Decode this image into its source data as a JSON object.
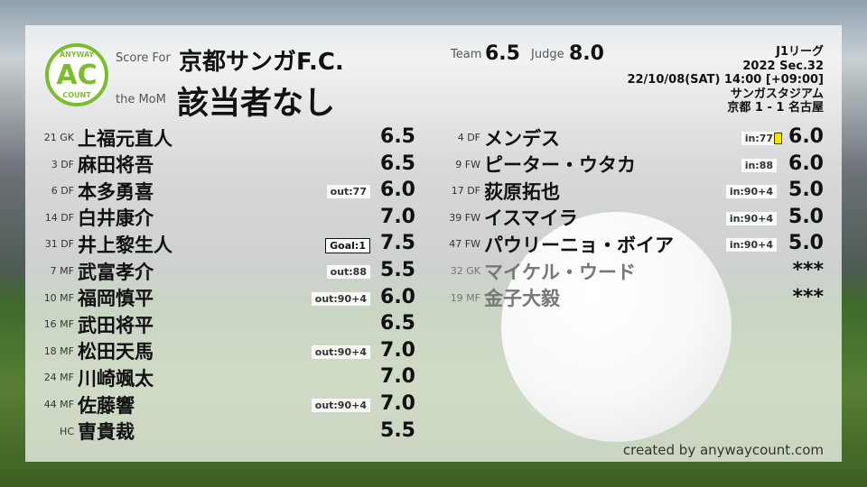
{
  "header": {
    "score_for_label": "Score For",
    "team_name": "京都サンガF.C.",
    "mom_label": "the MoM",
    "mom_value": "該当者なし",
    "team_label": "Team",
    "team_score": "6.5",
    "judge_label": "Judge",
    "judge_score": "8.0"
  },
  "logo": {
    "top": "ANYWAY",
    "mid": "AC",
    "bottom": "COUNT"
  },
  "match": {
    "league": "J1リーグ",
    "section": "2022 Sec.32",
    "datetime": "22/10/08(SAT) 14:00 [+09:00]",
    "stadium": "サンガスタジアム",
    "result": "京都 1 - 1 名古屋"
  },
  "starters": [
    {
      "num": "21 GK",
      "name": "上福元直人",
      "tag": "",
      "score": "6.5"
    },
    {
      "num": "3 DF",
      "name": "麻田将吾",
      "tag": "",
      "score": "6.5"
    },
    {
      "num": "6 DF",
      "name": "本多勇喜",
      "tag": "out:77",
      "score": "6.0"
    },
    {
      "num": "14 DF",
      "name": "白井康介",
      "tag": "",
      "score": "7.0"
    },
    {
      "num": "31 DF",
      "name": "井上黎生人",
      "tag": "Goal:1",
      "score": "7.5"
    },
    {
      "num": "7 MF",
      "name": "武富孝介",
      "tag": "out:88",
      "score": "5.5"
    },
    {
      "num": "10 MF",
      "name": "福岡慎平",
      "tag": "out:90+4",
      "score": "6.0"
    },
    {
      "num": "16 MF",
      "name": "武田将平",
      "tag": "",
      "score": "6.5"
    },
    {
      "num": "18 MF",
      "name": "松田天馬",
      "tag": "out:90+4",
      "score": "7.0"
    },
    {
      "num": "24 MF",
      "name": "川崎颯太",
      "tag": "",
      "score": "7.0"
    },
    {
      "num": "44 MF",
      "name": "佐藤響",
      "tag": "out:90+4",
      "score": "7.0"
    },
    {
      "num": "HC",
      "name": "曺貴裁",
      "tag": "",
      "score": "5.5"
    }
  ],
  "subs": [
    {
      "num": "4 DF",
      "name": "メンデス",
      "tag": "in:77",
      "score": "6.0",
      "yellow": true
    },
    {
      "num": "9 FW",
      "name": "ピーター・ウタカ",
      "tag": "in:88",
      "score": "6.0"
    },
    {
      "num": "17 DF",
      "name": "荻原拓也",
      "tag": "in:90+4",
      "score": "5.0"
    },
    {
      "num": "39 FW",
      "name": "イスマイラ",
      "tag": "in:90+4",
      "score": "5.0"
    },
    {
      "num": "47 FW",
      "name": "パウリーニョ・ボイア",
      "tag": "in:90+4",
      "score": "5.0"
    },
    {
      "num": "32 GK",
      "name": "マイケル・ウード",
      "tag": "",
      "score": "***",
      "dim": true
    },
    {
      "num": "19 MF",
      "name": "金子大毅",
      "tag": "",
      "score": "***",
      "dim": true
    }
  ],
  "credit": "created by anywaycount.com",
  "colors": {
    "accent": "#7cbd2e",
    "yellow_card": "#f2e600"
  }
}
